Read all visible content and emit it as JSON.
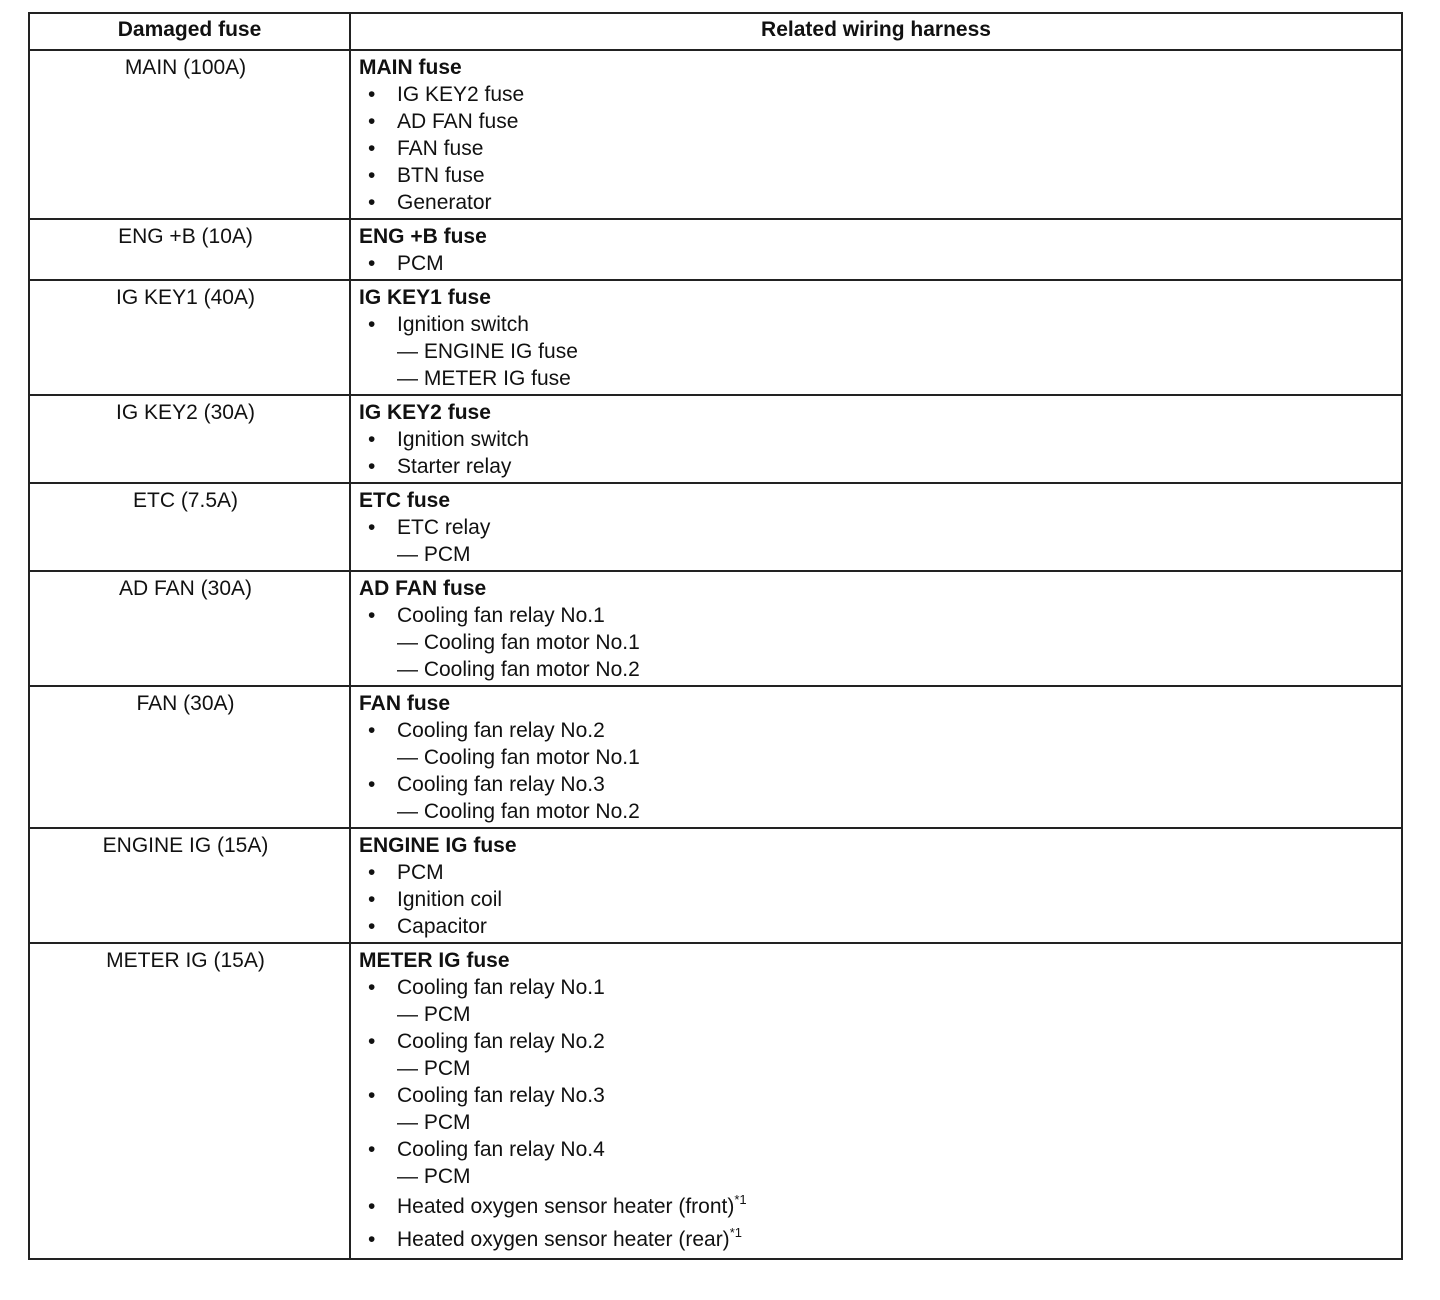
{
  "table": {
    "headers": [
      "Damaged fuse",
      "Related wiring harness"
    ],
    "rows": [
      {
        "fuse": "MAIN (100A)",
        "heading": "MAIN fuse",
        "items": [
          {
            "level": "bullet",
            "text": "IG KEY2 fuse"
          },
          {
            "level": "bullet",
            "text": "AD FAN fuse"
          },
          {
            "level": "bullet",
            "text": "FAN fuse"
          },
          {
            "level": "bullet",
            "text": "BTN fuse"
          },
          {
            "level": "bullet",
            "text": "Generator"
          }
        ]
      },
      {
        "fuse": "ENG +B (10A)",
        "heading": "ENG +B fuse",
        "items": [
          {
            "level": "bullet",
            "text": "PCM"
          }
        ]
      },
      {
        "fuse": "IG KEY1 (40A)",
        "heading": "IG KEY1 fuse",
        "items": [
          {
            "level": "bullet",
            "text": "Ignition switch"
          },
          {
            "level": "dash",
            "text": "— ENGINE IG fuse"
          },
          {
            "level": "dash",
            "text": "— METER IG fuse"
          }
        ]
      },
      {
        "fuse": "IG KEY2 (30A)",
        "heading": "IG KEY2 fuse",
        "items": [
          {
            "level": "bullet",
            "text": "Ignition switch"
          },
          {
            "level": "bullet",
            "text": "Starter relay"
          }
        ]
      },
      {
        "fuse": "ETC (7.5A)",
        "heading": "ETC fuse",
        "items": [
          {
            "level": "bullet",
            "text": "ETC relay"
          },
          {
            "level": "dash",
            "text": "— PCM"
          }
        ]
      },
      {
        "fuse": "AD FAN (30A)",
        "heading": "AD FAN fuse",
        "items": [
          {
            "level": "bullet",
            "text": "Cooling fan relay No.1"
          },
          {
            "level": "dash",
            "text": "— Cooling fan motor No.1"
          },
          {
            "level": "dash",
            "text": "— Cooling fan motor No.2"
          }
        ]
      },
      {
        "fuse": "FAN (30A)",
        "heading": "FAN fuse",
        "items": [
          {
            "level": "bullet",
            "text": "Cooling fan relay No.2"
          },
          {
            "level": "dash",
            "text": "— Cooling fan motor No.1"
          },
          {
            "level": "bullet",
            "text": "Cooling fan relay No.3"
          },
          {
            "level": "dash",
            "text": "— Cooling fan motor No.2"
          }
        ]
      },
      {
        "fuse": "ENGINE IG (15A)",
        "heading": "ENGINE IG fuse",
        "items": [
          {
            "level": "bullet",
            "text": "PCM"
          },
          {
            "level": "bullet",
            "text": "Ignition coil"
          },
          {
            "level": "bullet",
            "text": "Capacitor"
          }
        ]
      },
      {
        "fuse": "METER IG (15A)",
        "heading": "METER IG fuse",
        "items": [
          {
            "level": "bullet",
            "text": "Cooling fan relay No.1"
          },
          {
            "level": "dash",
            "text": "— PCM"
          },
          {
            "level": "bullet",
            "text": "Cooling fan relay No.2"
          },
          {
            "level": "dash",
            "text": "— PCM"
          },
          {
            "level": "bullet",
            "text": "Cooling fan relay No.3"
          },
          {
            "level": "dash",
            "text": "— PCM"
          },
          {
            "level": "bullet",
            "text": "Cooling fan relay No.4"
          },
          {
            "level": "dash",
            "text": "— PCM"
          },
          {
            "level": "bullet",
            "text": "Heated oxygen sensor heater (front)",
            "note": "*1"
          },
          {
            "level": "bullet",
            "text": "Heated oxygen sensor heater (rear)",
            "note": "*1"
          }
        ]
      }
    ]
  }
}
